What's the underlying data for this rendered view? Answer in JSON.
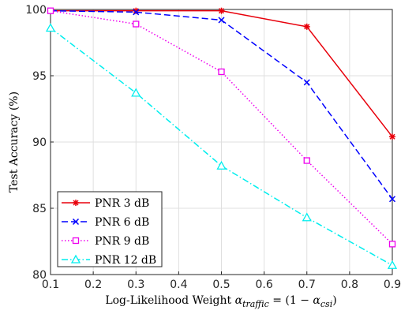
{
  "chart_data": {
    "type": "line",
    "title": "",
    "xlabel": "Log-Likelihood Weight α_traffic = (1 − α_csi)",
    "xlabel_parts": {
      "prefix": "Log-Likelihood Weight ",
      "alpha1": "α",
      "sub1": "traffic",
      "middle": " = (1 − ",
      "alpha2": "α",
      "sub2": "csi",
      "suffix": ")"
    },
    "ylabel": "Test Accuracy (%)",
    "xlim": [
      0.1,
      0.9
    ],
    "ylim": [
      80,
      100
    ],
    "xticks": [
      0.1,
      0.2,
      0.3,
      0.4,
      0.5,
      0.6,
      0.7,
      0.8,
      0.9
    ],
    "xtick_labels": [
      "0.1",
      "0.2",
      "0.3",
      "0.4",
      "0.5",
      "0.6",
      "0.7",
      "0.8",
      "0.9"
    ],
    "yticks": [
      80,
      85,
      90,
      95,
      100
    ],
    "ytick_labels": [
      "80",
      "85",
      "90",
      "95",
      "100"
    ],
    "grid": true,
    "legend_position": "bottom-left",
    "x": [
      0.1,
      0.3,
      0.5,
      0.7,
      0.9
    ],
    "series": [
      {
        "name": "PNR 3 dB",
        "values": [
          99.9,
          99.9,
          99.9,
          98.7,
          90.4
        ],
        "color": "#e8000b",
        "linestyle": "solid",
        "marker": "asterisk"
      },
      {
        "name": "PNR 6 dB",
        "values": [
          99.9,
          99.8,
          99.2,
          94.5,
          85.7
        ],
        "color": "#0000ff",
        "linestyle": "dashed",
        "marker": "x"
      },
      {
        "name": "PNR 9 dB",
        "values": [
          99.9,
          98.9,
          95.3,
          88.6,
          82.3
        ],
        "color": "#ee00ee",
        "linestyle": "dotted",
        "marker": "square"
      },
      {
        "name": "PNR 12 dB",
        "values": [
          98.6,
          93.7,
          88.2,
          84.3,
          80.7
        ],
        "color": "#00eeee",
        "linestyle": "dashdot",
        "marker": "triangle"
      }
    ]
  }
}
